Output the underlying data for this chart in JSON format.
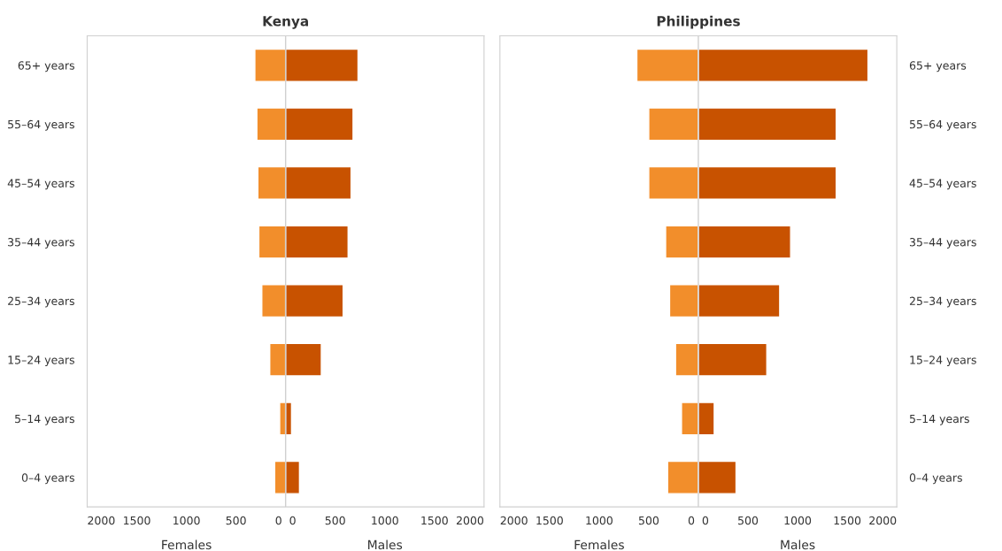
{
  "chart_data": [
    {
      "type": "bar",
      "orientation": "horizontal",
      "title": "Kenya",
      "categories": [
        "65+ years",
        "55–64 years",
        "45–54 years",
        "35–44 years",
        "25–34 years",
        "15–24 years",
        "5–14 years",
        "0–4 years"
      ],
      "series": [
        {
          "color": "#f28e2b",
          "values": [
            -310,
            -290,
            -280,
            -270,
            -240,
            -160,
            -60,
            -110
          ]
        },
        {
          "color": "#c85200",
          "values": [
            730,
            680,
            660,
            630,
            580,
            360,
            60,
            140
          ]
        }
      ],
      "xlim": [
        -2000,
        2000
      ],
      "xticks": [
        {
          "value": -2000,
          "label": "2000"
        },
        {
          "value": -1500,
          "label": "1500"
        },
        {
          "value": -1000,
          "label": "1000"
        },
        {
          "value": -500,
          "label": "500"
        },
        {
          "value": 0,
          "label": "0  0"
        },
        500,
        1000,
        1500,
        2000
      ],
      "ref_lines": [
        {
          "axis": "x",
          "value": 0,
          "color": "#d0d0d0"
        }
      ],
      "annotations": [
        "Females",
        "Males"
      ],
      "stacked": true,
      "grid": false,
      "legend": false
    },
    {
      "type": "bar",
      "orientation": "horizontal",
      "title": "Philippines",
      "categories": [
        "65+ years",
        "55–64 years",
        "45–54 years",
        "35–44 years",
        "25–34 years",
        "15–24 years",
        "5–14 years",
        "0–4 years"
      ],
      "series": [
        {
          "color": "#f28e2b",
          "values": [
            -620,
            -500,
            -500,
            -330,
            -290,
            -230,
            -170,
            -310
          ]
        },
        {
          "color": "#c85200",
          "values": [
            1710,
            1390,
            1390,
            930,
            820,
            690,
            160,
            380
          ]
        }
      ],
      "xlim": [
        -2000,
        2000
      ],
      "xticks": [
        {
          "value": -2000,
          "label": "2000"
        },
        {
          "value": -1500,
          "label": "1500"
        },
        {
          "value": -1000,
          "label": "1000"
        },
        {
          "value": -500,
          "label": "500"
        },
        {
          "value": 0,
          "label": "0  0"
        },
        500,
        1000,
        1500,
        2000
      ],
      "ref_lines": [
        {
          "axis": "x",
          "value": 0,
          "color": "#d0d0d0"
        }
      ],
      "annotations": [
        "Females",
        "Males"
      ],
      "stacked": true,
      "grid": false,
      "legend": false
    }
  ]
}
